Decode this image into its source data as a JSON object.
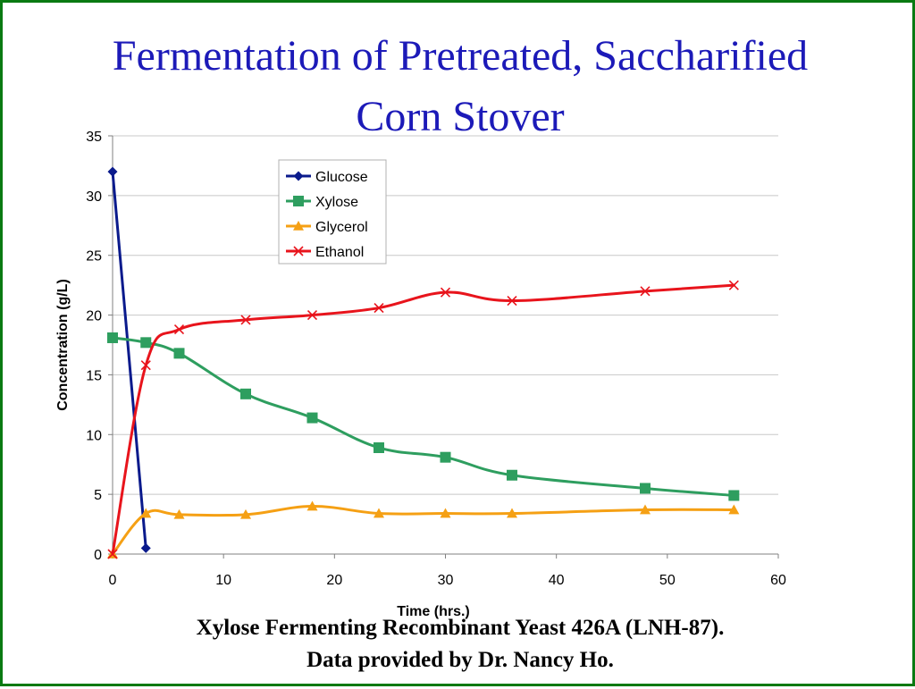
{
  "slide": {
    "title_line1": "Fermentation of Pretreated, Saccharified",
    "title_line2": "Corn Stover",
    "footer_line1": "Xylose Fermenting Recombinant Yeast 426A (LNH-87).",
    "footer_line2": "Data provided by Dr. Nancy Ho.",
    "border_color": "#0a7a12",
    "title_color": "#1c1ab8"
  },
  "chart_data": {
    "type": "line",
    "title": "",
    "xlabel": "Time (hrs.)",
    "ylabel": "Concentration (g/L)",
    "xlim": [
      0,
      60
    ],
    "ylim": [
      0,
      35
    ],
    "xticks": [
      0,
      10,
      20,
      30,
      40,
      50,
      60
    ],
    "yticks": [
      0,
      5,
      10,
      15,
      20,
      25,
      30,
      35
    ],
    "grid": "horizontal",
    "legend_position": "top-center",
    "smooth": true,
    "series": [
      {
        "name": "Glucose",
        "color": "#0a1a8c",
        "marker": "diamond",
        "x": [
          0,
          3
        ],
        "y": [
          32,
          0.5
        ]
      },
      {
        "name": "Xylose",
        "color": "#2e9e5f",
        "marker": "square",
        "x": [
          0,
          3,
          6,
          12,
          18,
          24,
          30,
          36,
          48,
          56
        ],
        "y": [
          18.1,
          17.7,
          16.8,
          13.4,
          11.4,
          8.9,
          8.1,
          6.6,
          5.5,
          4.9
        ]
      },
      {
        "name": "Glycerol",
        "color": "#f5a014",
        "marker": "triangle",
        "x": [
          0,
          3,
          6,
          12,
          18,
          24,
          30,
          36,
          48,
          56
        ],
        "y": [
          0,
          3.4,
          3.3,
          3.3,
          4.0,
          3.4,
          3.4,
          3.4,
          3.7,
          3.7
        ]
      },
      {
        "name": "Ethanol",
        "color": "#e8141c",
        "marker": "x",
        "x": [
          0,
          3,
          6,
          12,
          18,
          24,
          30,
          36,
          48,
          56
        ],
        "y": [
          0,
          15.8,
          18.8,
          19.6,
          20.0,
          20.6,
          21.9,
          21.2,
          22.0,
          22.5
        ]
      }
    ]
  }
}
